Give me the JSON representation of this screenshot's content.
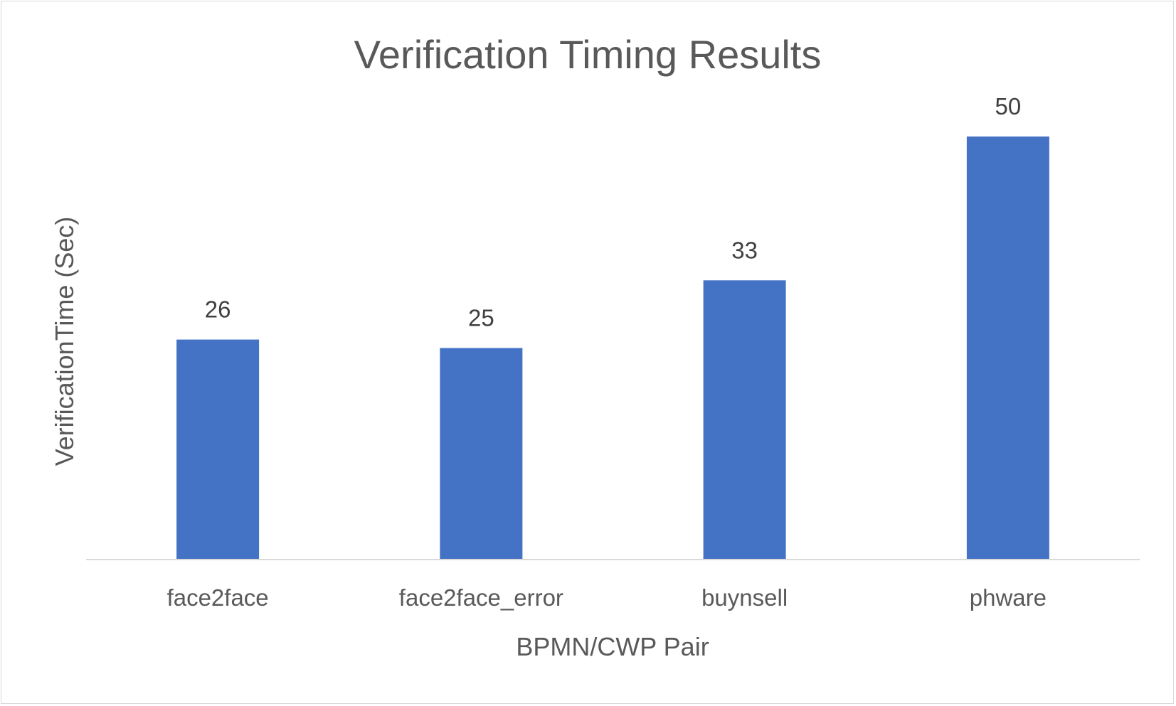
{
  "colors": {
    "bar": "#4472c4",
    "text": "#595959",
    "data_label": "#404040",
    "axis_line": "#d9d9d9",
    "border": "#d9d9d9",
    "background": "#ffffff"
  },
  "chart_data": {
    "type": "bar",
    "title": "Verification Timing Results",
    "xlabel": "BPMN/CWP Pair",
    "ylabel": "VerificationTime (Sec)",
    "categories": [
      "face2face",
      "face2face_error",
      "buynsell",
      "phware"
    ],
    "values": [
      26,
      25,
      33,
      50
    ],
    "data_labels": [
      "26",
      "25",
      "33",
      "50"
    ],
    "ylim": [
      0,
      50
    ],
    "grid": false,
    "legend": "none"
  }
}
